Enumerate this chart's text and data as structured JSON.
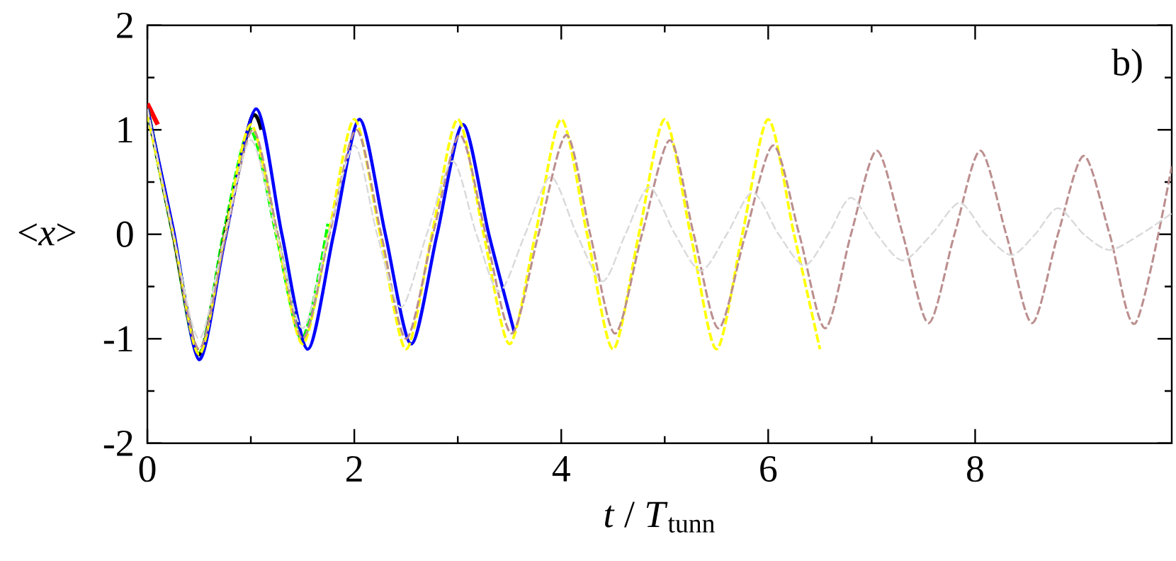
{
  "chart_data": {
    "type": "line",
    "xlabel": "*t* / *T*$_{tunn}$",
    "ylabel": "<*x*>",
    "xlim": [
      0,
      9.9
    ],
    "ylim": [
      -2,
      2
    ],
    "xticks": [
      0,
      2,
      4,
      6,
      8
    ],
    "yticks": [
      -2,
      -1,
      0,
      1,
      2
    ],
    "marker": "none",
    "annotations": [
      "b)"
    ],
    "series": [
      {
        "color": "#ff0000",
        "line_style": "solid",
        "x": [
          0,
          0.05,
          0.1
        ],
        "values": [
          1.25,
          1.15,
          1.05
        ]
      },
      {
        "color": "#00ff00",
        "line_style": "dashed",
        "x": [
          0,
          0.25,
          0.5,
          0.75,
          1.0,
          1.25,
          1.5,
          1.75
        ],
        "values": [
          1.2,
          0,
          -1.15,
          0.05,
          1.0,
          0,
          -1.0,
          0.1
        ]
      },
      {
        "color": "#000000",
        "line_style": "solid",
        "x": [
          0,
          0.25,
          0.5,
          0.75,
          1.0,
          1.1
        ],
        "values": [
          1.2,
          0,
          -1.15,
          0,
          1.1,
          1.0
        ]
      },
      {
        "color": "#0000ff",
        "line_style": "solid",
        "x": [
          0,
          0.25,
          0.5,
          0.75,
          1.05,
          1.3,
          1.55,
          1.8,
          2.05,
          2.3,
          2.55,
          2.8,
          3.05,
          3.3,
          3.55
        ],
        "values": [
          1.2,
          0.05,
          -1.2,
          -0.05,
          1.2,
          0,
          -1.1,
          0,
          1.1,
          0,
          -1.05,
          0,
          1.05,
          0,
          -0.95
        ]
      },
      {
        "color": "#ffff00",
        "line_style": "dashed",
        "x": [
          0,
          0.25,
          0.5,
          0.75,
          1,
          1.25,
          1.5,
          1.75,
          2,
          2.25,
          2.5,
          2.75,
          3,
          3.25,
          3.5,
          3.75,
          4,
          4.25,
          4.5,
          4.75,
          5,
          5.25,
          5.5,
          5.75,
          6,
          6.25,
          6.5
        ],
        "values": [
          1.15,
          0,
          -1.15,
          0,
          1.05,
          0,
          -1.05,
          0,
          1.1,
          0,
          -1.1,
          0,
          1.1,
          0,
          -1.05,
          0,
          1.1,
          0,
          -1.1,
          0,
          1.1,
          0,
          -1.1,
          0,
          1.1,
          0,
          -1.1
        ]
      },
      {
        "color": "#bc8f8f",
        "line_style": "dashed",
        "x": [
          0,
          0.25,
          0.5,
          0.76,
          1.02,
          1.26,
          1.5,
          1.76,
          2.02,
          2.26,
          2.5,
          2.76,
          3.02,
          3.27,
          3.52,
          3.78,
          4.05,
          4.28,
          4.52,
          4.78,
          5.05,
          5.28,
          5.52,
          5.78,
          6.05,
          6.3,
          6.55,
          6.8,
          7.05,
          7.3,
          7.55,
          7.8,
          8.05,
          8.3,
          8.55,
          8.8,
          9.05,
          9.3,
          9.55,
          9.9
        ],
        "values": [
          1.2,
          0,
          -1.1,
          0,
          1.0,
          0,
          -1.0,
          0,
          1.0,
          0,
          -1.0,
          0,
          0.95,
          0,
          -0.95,
          0,
          0.95,
          0,
          -0.95,
          0,
          0.9,
          0,
          -0.9,
          0,
          0.85,
          0,
          -0.9,
          0,
          0.8,
          0,
          -0.85,
          0,
          0.8,
          0,
          -0.85,
          0,
          0.75,
          0,
          -0.85,
          0.65
        ]
      },
      {
        "color": "#d9d9d9",
        "line_style": "dashed",
        "x": [
          0,
          0.25,
          0.5,
          0.75,
          1.0,
          1.25,
          1.5,
          1.75,
          2.0,
          2.22,
          2.45,
          2.7,
          2.95,
          3.18,
          3.4,
          3.65,
          3.9,
          4.15,
          4.4,
          4.62,
          4.85,
          5.1,
          5.35,
          5.6,
          5.85,
          6.1,
          6.35,
          6.58,
          6.8,
          7.05,
          7.3,
          7.58,
          7.85,
          8.1,
          8.35,
          8.58,
          8.8,
          9.05,
          9.3,
          9.6,
          9.9
        ],
        "values": [
          1.2,
          0,
          -1.0,
          0,
          0.9,
          0,
          -0.9,
          0,
          0.85,
          0,
          -0.7,
          0,
          0.7,
          0,
          -0.55,
          0,
          0.55,
          0,
          -0.45,
          0,
          0.45,
          0,
          -0.35,
          0,
          0.4,
          0,
          -0.3,
          0,
          0.35,
          0,
          -0.25,
          0,
          0.3,
          0,
          -0.2,
          0,
          0.25,
          0,
          -0.15,
          0,
          0.2
        ]
      }
    ]
  }
}
